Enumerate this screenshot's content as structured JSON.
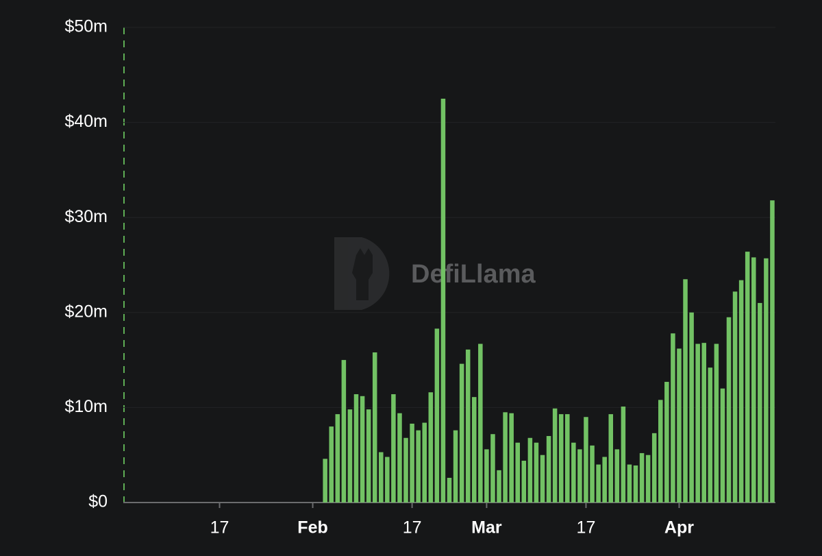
{
  "chart_data": {
    "type": "bar",
    "watermark": "DefiLlama",
    "color": "#72c264",
    "ylim": [
      0,
      50
    ],
    "yticks": [
      {
        "value": 0,
        "label": "$0"
      },
      {
        "value": 10,
        "label": "$10m"
      },
      {
        "value": 20,
        "label": "$20m"
      },
      {
        "value": 30,
        "label": "$30m"
      },
      {
        "value": 40,
        "label": "$40m"
      },
      {
        "value": 50,
        "label": "$50m"
      }
    ],
    "grid": true,
    "categories": [
      null,
      null,
      null,
      null,
      null,
      null,
      null,
      null,
      null,
      null,
      null,
      null,
      null,
      null,
      null,
      "17",
      null,
      null,
      null,
      null,
      null,
      null,
      null,
      null,
      null,
      null,
      null,
      null,
      null,
      null,
      "Feb",
      null,
      null,
      null,
      null,
      null,
      null,
      null,
      null,
      null,
      null,
      null,
      null,
      null,
      null,
      null,
      "17",
      null,
      null,
      null,
      null,
      null,
      null,
      null,
      null,
      null,
      null,
      null,
      "Mar",
      null,
      null,
      null,
      null,
      null,
      null,
      null,
      null,
      null,
      null,
      null,
      null,
      null,
      null,
      null,
      "17",
      null,
      null,
      null,
      null,
      null,
      null,
      null,
      null,
      null,
      null,
      null,
      null,
      null,
      null,
      "Apr",
      null,
      null,
      null,
      null,
      null,
      null,
      null,
      null,
      null,
      null,
      null,
      null,
      null,
      null,
      null
    ],
    "values": [
      0,
      0,
      0,
      0,
      0,
      0,
      0,
      0,
      0,
      0,
      0,
      0,
      0,
      0,
      0,
      0,
      0,
      0,
      0,
      0,
      0,
      0,
      0,
      0,
      0,
      0,
      0,
      0,
      0,
      0,
      0,
      0,
      4.6,
      8.0,
      9.3,
      15.0,
      9.8,
      11.4,
      11.2,
      9.8,
      15.8,
      5.3,
      4.8,
      11.4,
      9.4,
      6.8,
      8.3,
      7.6,
      8.4,
      11.6,
      18.3,
      42.5,
      2.6,
      7.6,
      14.6,
      16.1,
      11.1,
      16.7,
      5.6,
      7.2,
      3.4,
      9.5,
      9.4,
      6.3,
      4.4,
      6.8,
      6.3,
      5.0,
      7.0,
      9.9,
      9.3,
      9.3,
      6.3,
      5.6,
      9.0,
      6.0,
      4.0,
      4.8,
      9.3,
      5.6,
      10.1,
      4.0,
      3.9,
      5.2,
      5.0,
      7.3,
      10.8,
      12.7,
      17.8,
      16.2,
      23.5,
      20.0,
      16.7,
      16.8,
      14.2,
      16.7,
      12.0,
      19.5,
      22.2,
      23.4,
      26.4,
      25.8,
      21.0,
      25.7,
      31.8
    ]
  }
}
